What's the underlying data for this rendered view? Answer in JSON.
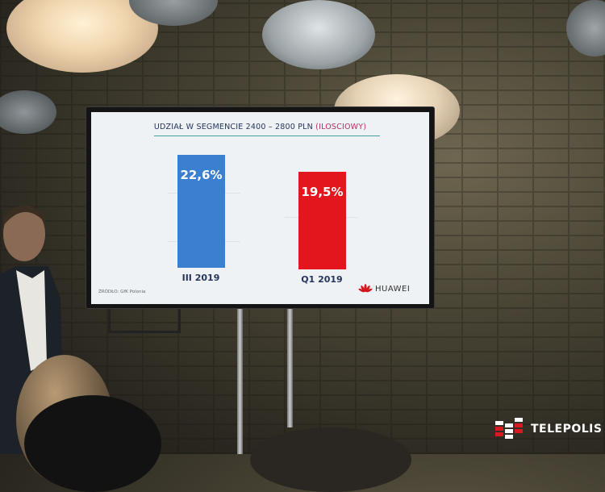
{
  "slide": {
    "title": "UDZIAŁ W SEGMENCIE 2400 – 2800 PLN",
    "title_accent": "(ILOSCIOWY)",
    "source": "ŹRÓDŁO: GfK Polonia",
    "brand": "HUAWEI"
  },
  "chart_data": {
    "type": "bar",
    "title": "UDZIAŁ W SEGMENCIE 2400 – 2800 PLN (ILOSCIOWY)",
    "categories": [
      "III 2019",
      "Q1 2019"
    ],
    "values": [
      22.6,
      19.5
    ],
    "data_labels": [
      "22,6%",
      "19,5%"
    ],
    "colors": [
      "#3a7fd0",
      "#e3161e"
    ],
    "unit": "%",
    "grid": true
  },
  "watermark": {
    "text": "TELEPOLIS"
  },
  "colors": {
    "blue_bar": "#3a7fd0",
    "red_bar": "#e3161e",
    "huawei_red": "#d2151f"
  }
}
